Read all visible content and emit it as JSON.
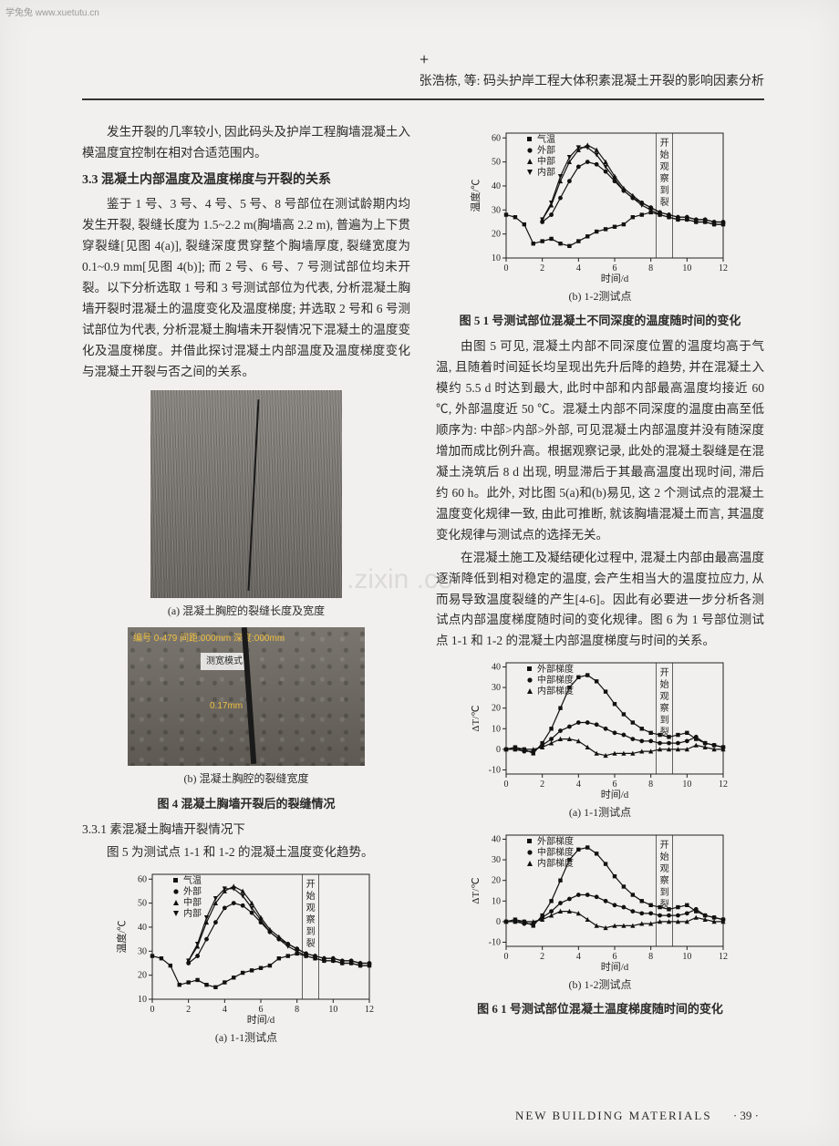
{
  "watermark_top": "学兔兔  www.xuetutu.cn",
  "crosshair": "+",
  "running_head": "张浩栋, 等: 码头护岸工程大体积素混凝土开裂的影响因素分析",
  "zixin_watermark": ".zixin .co",
  "left": {
    "p1": "发生开裂的几率较小, 因此码头及护岸工程胸墙混凝土入模温度宜控制在相对合适范围内。",
    "h3_3_3": "3.3  混凝土内部温度及温度梯度与开裂的关系",
    "p2": "鉴于 1 号、3 号、4 号、5 号、8 号部位在测试龄期内均发生开裂, 裂缝长度为 1.5~2.2 m(胸墙高 2.2 m), 普遍为上下贯穿裂缝[见图 4(a)], 裂缝深度贯穿整个胸墙厚度, 裂缝宽度为 0.1~0.9 mm[见图 4(b)]; 而 2 号、6 号、7 号测试部位均未开裂。以下分析选取 1 号和 3 号测试部位为代表, 分析混凝土胸墙开裂时混凝土的温度变化及温度梯度; 并选取 2 号和 6 号测试部位为代表, 分析混凝土胸墙未开裂情况下混凝土的温度变化及温度梯度。并借此探讨混凝土内部温度及温度梯度变化与混凝土开裂与否之间的关系。",
    "sub_a": "(a) 混凝土胸腔的裂缝长度及宽度",
    "sub_b": "(b) 混凝土胸腔的裂缝宽度",
    "fig4_cap": "图 4  混凝土胸墙开裂后的裂缝情况",
    "h3_3_3_1": "3.3.1  素混凝土胸墙开裂情况下",
    "p3": "图 5 为测试点 1-1 和 1-2 的混凝土温度变化趋势。",
    "photo_b_label1": "编号 0-479 间距:000mm 深度:000mm",
    "photo_b_label2": "测宽模式",
    "photo_b_label3": "0.17mm"
  },
  "right": {
    "fig5_cap": "图 5  1 号测试部位混凝土不同深度的温度随时间的变化",
    "p1": "由图 5 可见, 混凝土内部不同深度位置的温度均高于气温, 且随着时间延长均呈现出先升后降的趋势, 并在混凝土入模约 5.5 d 时达到最大, 此时中部和内部最高温度均接近 60 ℃, 外部温度近 50 ℃。混凝土内部不同深度的温度由高至低顺序为: 中部>内部>外部, 可见混凝土内部温度并没有随深度增加而成比例升高。根据观察记录, 此处的混凝土裂缝是在混凝土浇筑后 8 d 出现, 明显滞后于其最高温度出现时间, 滞后约 60 h。此外, 对比图 5(a)和(b)易见, 这 2 个测试点的混凝土温度变化规律一致, 由此可推断, 就该胸墙混凝土而言, 其温度变化规律与测试点的选择无关。",
    "p2": "在混凝土施工及凝结硬化过程中, 混凝土内部由最高温度逐渐降低到相对稳定的温度, 会产生相当大的温度拉应力, 从而易导致温度裂缝的产生[4-6]。因此有必要进一步分析各测试点内部温度梯度随时间的变化规律。图 6 为 1 号部位测试点 1-1 和 1-2 的混凝土内部温度梯度与时间的关系。",
    "fig6_cap": "图 6  1 号测试部位混凝土温度梯度随时间的变化"
  },
  "chart_common": {
    "xlabel": "时间/d",
    "crack_label": "开始观察到裂",
    "x_ticks": [
      0,
      2,
      4,
      6,
      8,
      10,
      12
    ],
    "axis_color": "#222",
    "grid_color": "#e0e0e0",
    "bg": "#f2f0ee",
    "colors": {
      "s1": "#111",
      "s2": "#111",
      "s3": "#111",
      "s4": "#111"
    }
  },
  "chart_temp": {
    "ylabel": "温度/℃",
    "y_ticks": [
      10,
      20,
      30,
      40,
      50,
      60
    ],
    "ylim": [
      10,
      62
    ],
    "legend": [
      "气温",
      "外部",
      "中部",
      "内部"
    ],
    "markers": [
      "■",
      "●",
      "▲",
      "▼"
    ],
    "air": [
      28,
      27,
      24,
      16,
      17,
      18,
      16,
      15,
      17,
      19,
      21,
      22,
      23,
      24,
      27,
      28,
      29,
      28,
      27,
      26,
      26,
      25,
      25,
      24,
      24
    ],
    "outer": [
      null,
      null,
      null,
      null,
      25,
      28,
      35,
      42,
      48,
      50,
      49,
      46,
      42,
      38,
      35,
      33,
      31,
      29,
      28,
      27,
      27,
      26,
      26,
      25,
      25
    ],
    "mid": [
      null,
      null,
      null,
      null,
      26,
      32,
      42,
      50,
      55,
      57,
      55,
      50,
      44,
      39,
      36,
      33,
      31,
      29,
      28,
      27,
      27,
      26,
      26,
      25,
      25
    ],
    "inner": [
      null,
      null,
      null,
      null,
      26,
      33,
      44,
      52,
      56,
      56,
      53,
      48,
      43,
      38,
      35,
      32,
      30,
      28,
      27,
      26,
      26,
      25,
      25,
      24,
      24
    ],
    "crack_x": 8.3,
    "sub_a": "(a) 1-1测试点",
    "sub_b": "(b) 1-2测试点"
  },
  "chart_grad": {
    "ylabel": "ΔT/℃",
    "y_ticks": [
      -10,
      0,
      10,
      20,
      30,
      40
    ],
    "ylim": [
      -12,
      42
    ],
    "legend": [
      "外部梯度",
      "中部梯度",
      "内部梯度"
    ],
    "markers": [
      "■",
      "●",
      "▲"
    ],
    "outer": [
      0,
      1,
      0,
      -2,
      3,
      10,
      20,
      30,
      35,
      36,
      33,
      28,
      22,
      17,
      13,
      10,
      8,
      7,
      6,
      7,
      8,
      5,
      3,
      2,
      1
    ],
    "mid": [
      0,
      0,
      -1,
      -1,
      2,
      5,
      9,
      11,
      13,
      13,
      12,
      10,
      8,
      7,
      5,
      4,
      4,
      3,
      3,
      3,
      4,
      6,
      3,
      2,
      1
    ],
    "inner": [
      0,
      0,
      0,
      0,
      1,
      3,
      5,
      5,
      4,
      1,
      -2,
      -3,
      -2,
      -2,
      -2,
      -1,
      -1,
      0,
      0,
      0,
      0,
      2,
      1,
      0,
      0
    ],
    "crack_x": 8.3,
    "sub_a": "(a) 1-1测试点",
    "sub_b": "(b) 1-2测试点"
  },
  "footer": {
    "journal": "NEW  BUILDING  MATERIALS",
    "page": "· 39 ·"
  }
}
